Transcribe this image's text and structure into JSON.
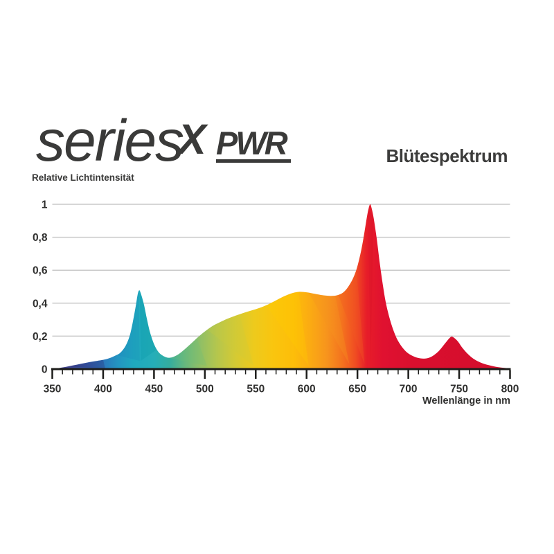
{
  "logo": {
    "series": "series",
    "x": "X",
    "pwr": "PWR"
  },
  "title": "Blütespektrum",
  "chart_data": {
    "type": "area",
    "title": "Blütespektrum",
    "xlabel": "Wellenlänge in nm",
    "ylabel": "Relative Lichtintensität",
    "xlim": [
      350,
      800
    ],
    "ylim": [
      0,
      1
    ],
    "grid": "horizontal",
    "legend": "none",
    "x_ticks": [
      {
        "value": 350,
        "label": "350"
      },
      {
        "value": 400,
        "label": "400"
      },
      {
        "value": 450,
        "label": "450"
      },
      {
        "value": 500,
        "label": "500"
      },
      {
        "value": 550,
        "label": "550"
      },
      {
        "value": 600,
        "label": "600"
      },
      {
        "value": 650,
        "label": "650"
      },
      {
        "value": 700,
        "label": "700"
      },
      {
        "value": 750,
        "label": "750"
      },
      {
        "value": 800,
        "label": "800"
      }
    ],
    "x_minor_tick_step": 10,
    "y_ticks": [
      {
        "value": 0,
        "label": "0"
      },
      {
        "value": 0.2,
        "label": "0,2"
      },
      {
        "value": 0.4,
        "label": "0,4"
      },
      {
        "value": 0.6,
        "label": "0,6"
      },
      {
        "value": 0.8,
        "label": "0,8"
      },
      {
        "value": 1,
        "label": "1"
      }
    ],
    "peaks": [
      {
        "wavelength": 435,
        "intensity": 0.48
      },
      {
        "wavelength": 593,
        "intensity": 0.47
      },
      {
        "wavelength": 662,
        "intensity": 1.0
      },
      {
        "wavelength": 742,
        "intensity": 0.2
      }
    ],
    "points": [
      [
        350,
        0
      ],
      [
        356,
        0.006
      ],
      [
        362,
        0.012
      ],
      [
        370,
        0.022
      ],
      [
        378,
        0.032
      ],
      [
        386,
        0.042
      ],
      [
        394,
        0.05
      ],
      [
        400,
        0.056
      ],
      [
        406,
        0.066
      ],
      [
        412,
        0.082
      ],
      [
        417,
        0.1
      ],
      [
        422,
        0.14
      ],
      [
        426,
        0.2
      ],
      [
        429,
        0.28
      ],
      [
        432,
        0.38
      ],
      [
        434,
        0.455
      ],
      [
        435.5,
        0.478
      ],
      [
        437,
        0.46
      ],
      [
        440,
        0.395
      ],
      [
        443,
        0.305
      ],
      [
        446,
        0.225
      ],
      [
        450,
        0.152
      ],
      [
        454,
        0.107
      ],
      [
        458,
        0.084
      ],
      [
        463,
        0.07
      ],
      [
        468,
        0.072
      ],
      [
        474,
        0.09
      ],
      [
        480,
        0.119
      ],
      [
        487,
        0.158
      ],
      [
        494,
        0.198
      ],
      [
        501,
        0.233
      ],
      [
        508,
        0.263
      ],
      [
        515,
        0.285
      ],
      [
        522,
        0.305
      ],
      [
        530,
        0.324
      ],
      [
        538,
        0.341
      ],
      [
        546,
        0.356
      ],
      [
        554,
        0.372
      ],
      [
        562,
        0.392
      ],
      [
        570,
        0.417
      ],
      [
        578,
        0.442
      ],
      [
        586,
        0.461
      ],
      [
        593,
        0.469
      ],
      [
        600,
        0.466
      ],
      [
        608,
        0.457
      ],
      [
        616,
        0.448
      ],
      [
        624,
        0.444
      ],
      [
        630,
        0.448
      ],
      [
        636,
        0.465
      ],
      [
        641,
        0.5
      ],
      [
        646,
        0.555
      ],
      [
        650,
        0.625
      ],
      [
        654,
        0.73
      ],
      [
        657,
        0.835
      ],
      [
        659.5,
        0.93
      ],
      [
        661,
        0.975
      ],
      [
        662.5,
        1.0
      ],
      [
        664,
        0.975
      ],
      [
        666,
        0.915
      ],
      [
        669,
        0.79
      ],
      [
        672,
        0.64
      ],
      [
        675,
        0.51
      ],
      [
        678,
        0.4
      ],
      [
        682,
        0.3
      ],
      [
        686,
        0.225
      ],
      [
        690,
        0.17
      ],
      [
        695,
        0.125
      ],
      [
        700,
        0.095
      ],
      [
        706,
        0.075
      ],
      [
        712,
        0.065
      ],
      [
        718,
        0.065
      ],
      [
        724,
        0.08
      ],
      [
        730,
        0.11
      ],
      [
        736,
        0.155
      ],
      [
        740,
        0.185
      ],
      [
        742.5,
        0.197
      ],
      [
        745,
        0.19
      ],
      [
        749,
        0.166
      ],
      [
        753,
        0.13
      ],
      [
        758,
        0.095
      ],
      [
        764,
        0.063
      ],
      [
        771,
        0.04
      ],
      [
        779,
        0.024
      ],
      [
        788,
        0.012
      ],
      [
        800,
        0.004
      ]
    ],
    "gradient_stops": [
      {
        "at": 350,
        "color": "#443a7e"
      },
      {
        "at": 368,
        "color": "#3d4590"
      },
      {
        "at": 385,
        "color": "#355cab"
      },
      {
        "at": 400,
        "color": "#2b78bc"
      },
      {
        "at": 415,
        "color": "#2396c2"
      },
      {
        "at": 430,
        "color": "#1fa9bf"
      },
      {
        "at": 450,
        "color": "#25aeb8"
      },
      {
        "at": 465,
        "color": "#34ad9f"
      },
      {
        "at": 480,
        "color": "#65b77f"
      },
      {
        "at": 495,
        "color": "#8fbf66"
      },
      {
        "at": 512,
        "color": "#b5c64d"
      },
      {
        "at": 530,
        "color": "#d4ca34"
      },
      {
        "at": 548,
        "color": "#edca1d"
      },
      {
        "at": 568,
        "color": "#fac50e"
      },
      {
        "at": 588,
        "color": "#fdbd09"
      },
      {
        "at": 604,
        "color": "#fbaa13"
      },
      {
        "at": 620,
        "color": "#f7941d"
      },
      {
        "at": 635,
        "color": "#f4731e"
      },
      {
        "at": 648,
        "color": "#f04d22"
      },
      {
        "at": 659,
        "color": "#e71d29"
      },
      {
        "at": 675,
        "color": "#e01130"
      },
      {
        "at": 705,
        "color": "#d90f2e"
      },
      {
        "at": 800,
        "color": "#d40e2c"
      }
    ],
    "facet_overlays": [
      {
        "points": [
          [
            366,
            0.015
          ],
          [
            400,
            0.056
          ],
          [
            402,
            0.004
          ]
        ],
        "color": "rgba(40,40,110,0.30)"
      },
      {
        "points": [
          [
            413,
            0.085
          ],
          [
            435,
            0.478
          ],
          [
            436,
            0.05
          ]
        ],
        "color": "rgba(20,120,185,0.18)"
      },
      {
        "points": [
          [
            436,
            0.47
          ],
          [
            453,
            0.12
          ],
          [
            437,
            0.05
          ]
        ],
        "color": "rgba(0,145,160,0.22)"
      },
      {
        "points": [
          [
            463,
            0.07
          ],
          [
            492,
            0.19
          ],
          [
            502,
            0.02
          ]
        ],
        "color": "rgba(110,190,120,0.28)"
      },
      {
        "points": [
          [
            502,
            0.24
          ],
          [
            534,
            0.33
          ],
          [
            548,
            0.02
          ]
        ],
        "color": "rgba(205,205,60,0.25)"
      },
      {
        "points": [
          [
            560,
            0.39
          ],
          [
            592,
            0.47
          ],
          [
            602,
            0.02
          ]
        ],
        "color": "rgba(255,205,0,0.28)"
      },
      {
        "points": [
          [
            602,
            0.465
          ],
          [
            628,
            0.45
          ],
          [
            642,
            0.03
          ]
        ],
        "color": "rgba(247,148,29,0.33)"
      },
      {
        "points": [
          [
            631,
            0.455
          ],
          [
            649,
            0.6
          ],
          [
            657,
            0.03
          ]
        ],
        "color": "rgba(241,90,34,0.35)"
      },
      {
        "points": [
          [
            660,
            0.97
          ],
          [
            666,
            0.93
          ],
          [
            663,
            0.05
          ]
        ],
        "color": "rgba(200,10,40,0.16)"
      }
    ],
    "colors": {
      "axis": "#1d1d1b",
      "grid": "#c9c9c9",
      "tick_text": "#2f2f2e",
      "background": "#ffffff"
    }
  }
}
